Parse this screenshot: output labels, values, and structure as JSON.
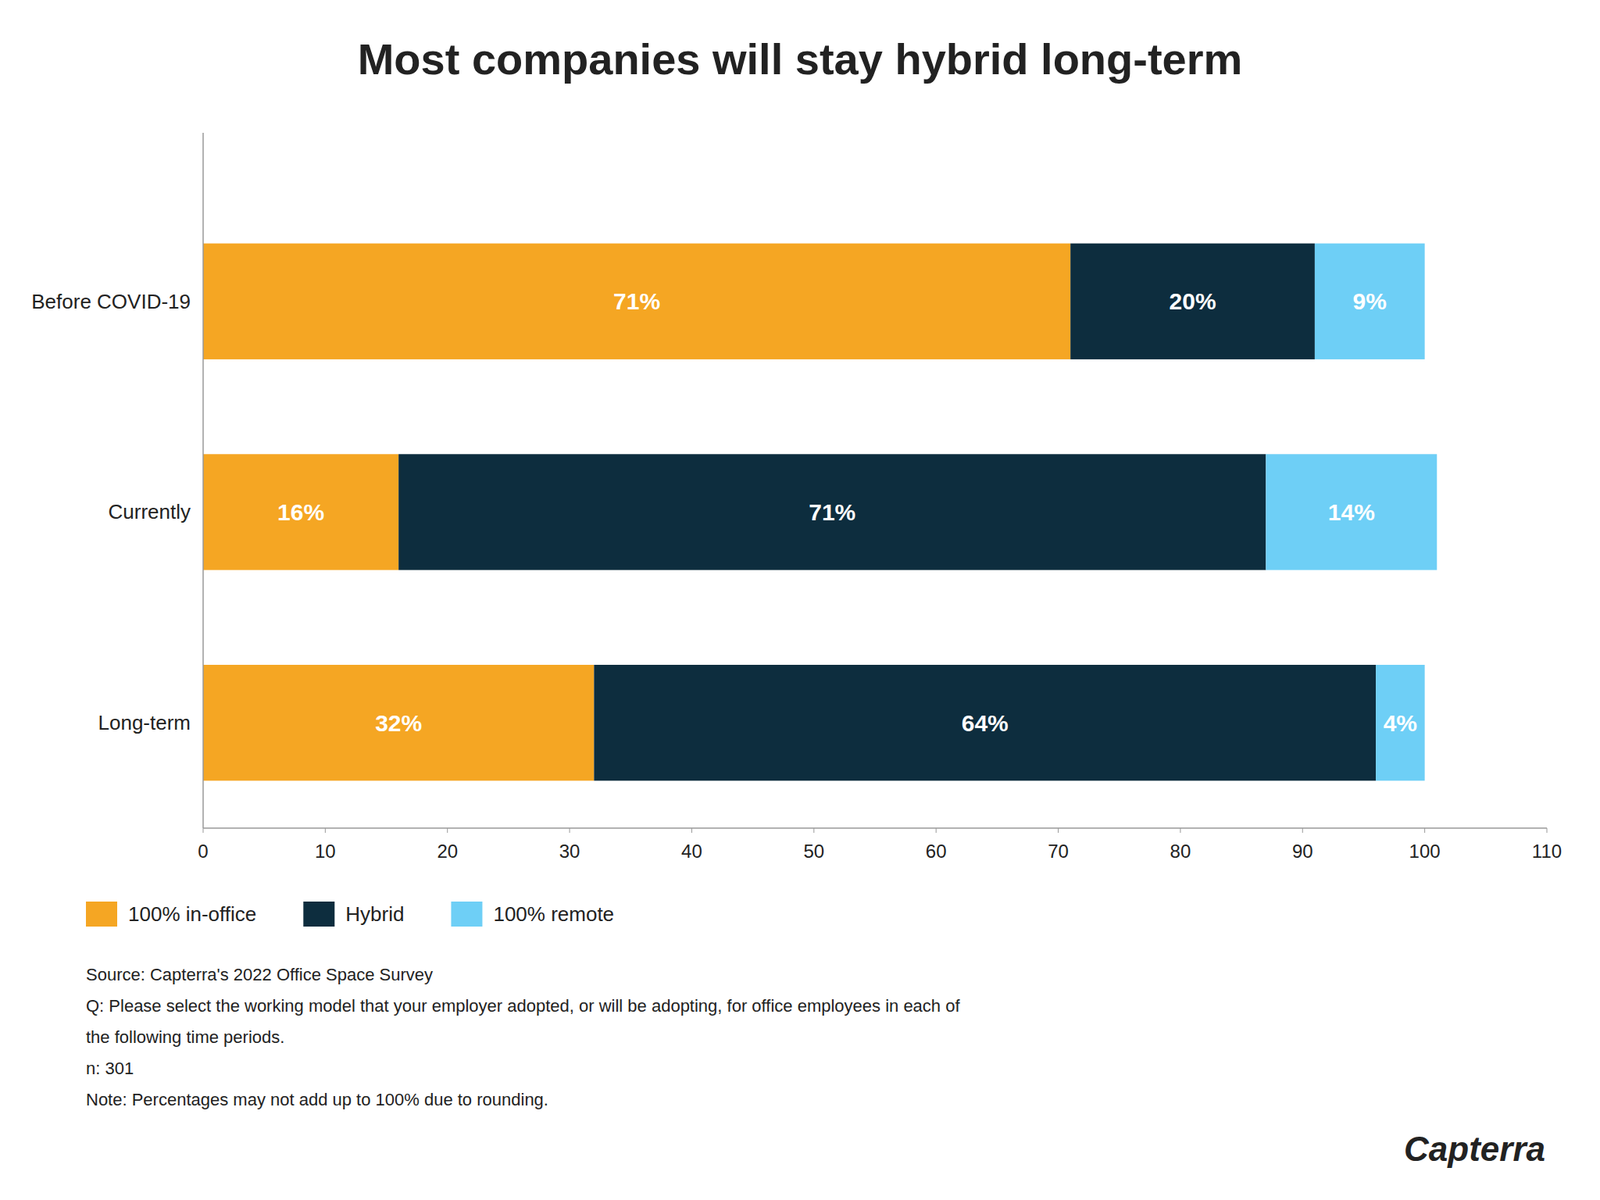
{
  "chart_data": {
    "type": "bar",
    "orientation": "horizontal",
    "stacked": true,
    "data_labels": true,
    "grid": false,
    "legend": "lower left",
    "title": "Most companies will stay hybrid long-term",
    "categories": [
      "Before COVID-19",
      "Currently",
      "Long-term"
    ],
    "series": [
      {
        "name": "100% in-office",
        "color": "#f5a623",
        "values": [
          71,
          16,
          32
        ],
        "value_labels": [
          "71%",
          "16%",
          "32%"
        ]
      },
      {
        "name": "Hybrid",
        "color": "#0d2d3e",
        "values": [
          20,
          71,
          64
        ],
        "value_labels": [
          "20%",
          "71%",
          "64%"
        ]
      },
      {
        "name": "100% remote",
        "color": "#6ecff6",
        "values": [
          9,
          14,
          4
        ],
        "value_labels": [
          "9%",
          "14%",
          "4%"
        ]
      }
    ],
    "xlim": [
      0,
      110
    ],
    "xticks": [
      0,
      10,
      20,
      30,
      40,
      50,
      60,
      70,
      80,
      90,
      100,
      110
    ],
    "annotations": [
      "Source: Capterra's 2022 Office Space Survey\nQ: Please select the working model that your employer adopted, or will be adopting, for office employees in each of\nthe following time periods.\nn: 301\nNote: Percentages may not add up to 100% due to rounding.",
      "Capterra"
    ]
  }
}
